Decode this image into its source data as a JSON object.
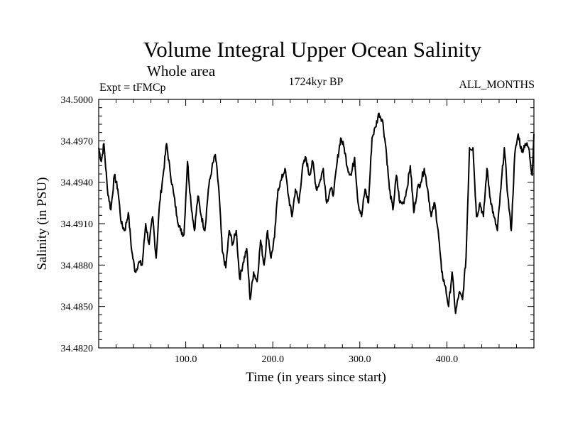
{
  "chart_data": {
    "type": "line",
    "title": "Volume Integral Upper Ocean Salinity",
    "subtitle": "Whole area",
    "experiment_label": "Expt = tFMCp",
    "period_label": "1724kyr BP",
    "months_label": "ALL_MONTHS",
    "xlabel": "Time (in years since start)",
    "ylabel": "Salinity (in PSU)",
    "xlim": [
      0,
      500
    ],
    "ylim": [
      34.482,
      34.5
    ],
    "xticks": [
      100,
      200,
      300,
      400
    ],
    "xtick_labels": [
      "100.0",
      "200.0",
      "300.0",
      "400.0"
    ],
    "yticks": [
      34.482,
      34.485,
      34.488,
      34.491,
      34.494,
      34.497,
      34.5
    ],
    "ytick_labels": [
      "34.4820",
      "34.4850",
      "34.4880",
      "34.4910",
      "34.4940",
      "34.4970",
      "34.5000"
    ],
    "series": [
      {
        "name": "salinity",
        "x": [
          0,
          3,
          6,
          10,
          14,
          18,
          22,
          26,
          30,
          34,
          38,
          42,
          46,
          50,
          54,
          58,
          62,
          66,
          70,
          74,
          78,
          82,
          86,
          90,
          94,
          98,
          102,
          106,
          110,
          114,
          118,
          122,
          126,
          130,
          134,
          138,
          142,
          146,
          150,
          154,
          158,
          162,
          166,
          170,
          174,
          178,
          182,
          186,
          190,
          194,
          198,
          202,
          206,
          210,
          214,
          218,
          222,
          226,
          230,
          234,
          238,
          242,
          246,
          250,
          254,
          258,
          262,
          266,
          270,
          274,
          278,
          282,
          286,
          290,
          294,
          298,
          302,
          306,
          310,
          314,
          318,
          322,
          326,
          330,
          334,
          338,
          342,
          346,
          350,
          354,
          358,
          362,
          366,
          370,
          374,
          378,
          382,
          386,
          390,
          394,
          398,
          402,
          406,
          410,
          414,
          418,
          422,
          426,
          430,
          434,
          438,
          442,
          446,
          450,
          454,
          458,
          462,
          466,
          470,
          474,
          478,
          482,
          486,
          490,
          494,
          498,
          500
        ],
        "y": [
          34.4965,
          34.4955,
          34.4968,
          34.4935,
          34.492,
          34.4945,
          34.4935,
          34.491,
          34.4905,
          34.4918,
          34.489,
          34.4875,
          34.4882,
          34.488,
          34.491,
          34.4895,
          34.4915,
          34.4885,
          34.4925,
          34.4945,
          34.4968,
          34.4948,
          34.4932,
          34.4915,
          34.4905,
          34.4902,
          34.4955,
          34.4925,
          34.4905,
          34.493,
          34.4915,
          34.4905,
          34.4935,
          34.495,
          34.496,
          34.4935,
          34.489,
          34.4878,
          34.4905,
          34.4895,
          34.4905,
          34.487,
          34.4882,
          34.4892,
          34.4855,
          34.4875,
          34.4868,
          34.4898,
          34.488,
          34.4905,
          34.4885,
          34.49,
          34.4935,
          34.4942,
          34.495,
          34.493,
          34.4915,
          34.4935,
          34.4925,
          34.495,
          34.4958,
          34.4945,
          34.4955,
          34.4935,
          34.494,
          34.495,
          34.4925,
          34.4935,
          34.4932,
          34.4955,
          34.4972,
          34.4965,
          34.495,
          34.4945,
          34.4958,
          34.4925,
          34.4915,
          34.4935,
          34.4925,
          34.4972,
          34.498,
          34.499,
          34.4985,
          34.4965,
          34.4935,
          34.492,
          34.4945,
          34.4925,
          34.4925,
          34.4935,
          34.4952,
          34.4918,
          34.4935,
          34.494,
          34.495,
          34.4935,
          34.4915,
          34.4925,
          34.4905,
          34.4875,
          34.4865,
          34.485,
          34.4875,
          34.4845,
          34.486,
          34.4855,
          34.4885,
          34.4965,
          34.4965,
          34.4915,
          34.4925,
          34.4915,
          34.495,
          34.4928,
          34.4915,
          34.4905,
          34.4935,
          34.4965,
          34.493,
          34.4905,
          34.496,
          34.4975,
          34.4962,
          34.4968,
          34.4965,
          34.4945,
          34.4975
        ]
      }
    ]
  }
}
